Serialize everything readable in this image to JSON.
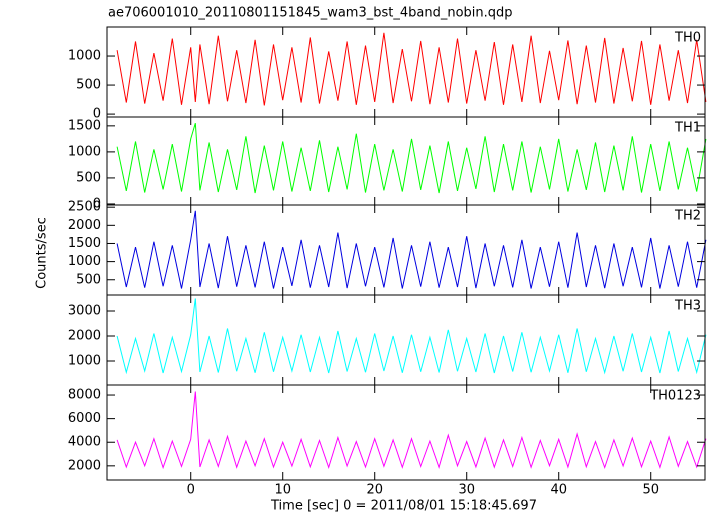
{
  "chart_data": {
    "type": "line",
    "title": "ae706001010_20110801151845_wam3_bst_4band_nobin.qdp",
    "x_label": "Time [sec] 0 = 2011/08/01 15:18:45.697",
    "y_label": "Counts/sec",
    "xlim": [
      -9.1,
      55.9
    ],
    "xticks": [
      0,
      10,
      20,
      30,
      40,
      50
    ],
    "x": [
      -8,
      -7,
      -6,
      -5,
      -4,
      -3,
      -2,
      -1,
      0,
      0.5,
      1,
      2,
      3,
      4,
      5,
      6,
      7,
      8,
      9,
      10,
      11,
      12,
      13,
      14,
      15,
      16,
      17,
      18,
      19,
      20,
      21,
      22,
      23,
      24,
      25,
      26,
      27,
      28,
      29,
      30,
      31,
      32,
      33,
      34,
      35,
      36,
      37,
      38,
      39,
      40,
      41,
      42,
      43,
      44,
      45,
      46,
      47,
      48,
      49,
      50,
      51,
      52,
      53,
      54,
      55,
      56
    ],
    "panels": [
      {
        "ylim": [
          -50,
          1500
        ],
        "yticks": [
          0,
          500,
          1000
        ],
        "series": [
          {
            "name": "TH0",
            "color": "#ff0000",
            "values": [
              1100,
              200,
              1250,
              180,
              1050,
              230,
              1300,
              160,
              1150,
              210,
              1200,
              170,
              1350,
              220,
              1100,
              190,
              1280,
              150,
              1200,
              240,
              1150,
              200,
              1320,
              180,
              1080,
              230,
              1250,
              160,
              1180,
              210,
              1400,
              190,
              1120,
              220,
              1260,
              170,
              1150,
              200,
              1300,
              180,
              1100,
              230,
              1240,
              160,
              1200,
              210,
              1350,
              190,
              1090,
              240,
              1270,
              170,
              1180,
              200,
              1310,
              180,
              1140,
              220,
              1260,
              160,
              1200,
              230,
              1100,
              190,
              1280,
              210
            ]
          }
        ]
      },
      {
        "ylim": [
          -20,
          1670
        ],
        "yticks": [
          0,
          500,
          1000,
          1500
        ],
        "series": [
          {
            "name": "TH1",
            "color": "#00ff00",
            "values": [
              1100,
              250,
              1200,
              220,
              1050,
              280,
              1150,
              240,
              1250,
              1550,
              260,
              1180,
              230,
              1050,
              270,
              1300,
              210,
              1120,
              260,
              1200,
              240,
              1080,
              250,
              1220,
              230,
              1100,
              280,
              1350,
              220,
              1150,
              260,
              1050,
              240,
              1250,
              270,
              1120,
              210,
              1200,
              250,
              1080,
              290,
              1300,
              230,
              1150,
              260,
              1200,
              220,
              1100,
              280,
              1250,
              240,
              1050,
              270,
              1180,
              230,
              1120,
              260,
              1300,
              220,
              1150,
              250,
              1200,
              280,
              1080,
              240,
              1250
            ]
          }
        ]
      },
      {
        "ylim": [
          80,
          2560
        ],
        "yticks": [
          500,
          1000,
          1500,
          2000,
          2500
        ],
        "series": [
          {
            "name": "TH2",
            "color": "#0000e0",
            "values": [
              1500,
              300,
              1400,
              280,
              1550,
              320,
              1450,
              260,
              1600,
              2400,
              300,
              1500,
              270,
              1700,
              310,
              1450,
              290,
              1550,
              260,
              1400,
              330,
              1600,
              280,
              1450,
              300,
              1800,
              270,
              1500,
              320,
              1400,
              290,
              1650,
              260,
              1450,
              310,
              1550,
              280,
              1400,
              300,
              1700,
              270,
              1500,
              320,
              1450,
              290,
              1600,
              260,
              1400,
              310,
              1550,
              280,
              1800,
              300,
              1450,
              270,
              1500,
              320,
              1400,
              290,
              1650,
              260,
              1450,
              310,
              1550,
              280,
              1600
            ]
          }
        ]
      },
      {
        "ylim": [
          40,
          3640
        ],
        "yticks": [
          1000,
          2000,
          3000
        ],
        "series": [
          {
            "name": "TH3",
            "color": "#00ffff",
            "values": [
              2000,
              550,
              1900,
              600,
              2100,
              520,
              1950,
              580,
              2050,
              3500,
              560,
              2000,
              540,
              2300,
              590,
              1900,
              530,
              2150,
              570,
              1950,
              600,
              2050,
              560,
              1950,
              520,
              2200,
              580,
              1900,
              550,
              2100,
              600,
              2000,
              530,
              2050,
              570,
              1950,
              540,
              2250,
              590,
              1900,
              560,
              2100,
              520,
              2000,
              580,
              2150,
              550,
              1950,
              600,
              2050,
              530,
              2300,
              570,
              1900,
              540,
              2000,
              590,
              2100,
              560,
              1950,
              520,
              2200,
              580,
              1900,
              550,
              2050
            ]
          }
        ]
      },
      {
        "ylim": [
          800,
          8850
        ],
        "yticks": [
          2000,
          4000,
          6000,
          8000
        ],
        "series": [
          {
            "name": "TH0123",
            "color": "#ff00ff",
            "values": [
              4200,
              1900,
              4000,
              2000,
              4300,
              1850,
              4100,
              1950,
              4250,
              8300,
              1900,
              4200,
              1950,
              4500,
              1880,
              4100,
              2000,
              4300,
              1900,
              4000,
              1980,
              4250,
              1920,
              4150,
              1870,
              4400,
              1990,
              4050,
              1900,
              4300,
              1960,
              4200,
              1880,
              4300,
              1940,
              4100,
              1870,
              4600,
              2000,
              4050,
              1910,
              4350,
              1890,
              4200,
              1950,
              4400,
              1880,
              4150,
              2010,
              4250,
              1900,
              4700,
              1930,
              4050,
              1860,
              4200,
              1990,
              4350,
              1920,
              4100,
              1870,
              4450,
              1960,
              4050,
              1900,
              4300
            ]
          }
        ]
      }
    ]
  }
}
